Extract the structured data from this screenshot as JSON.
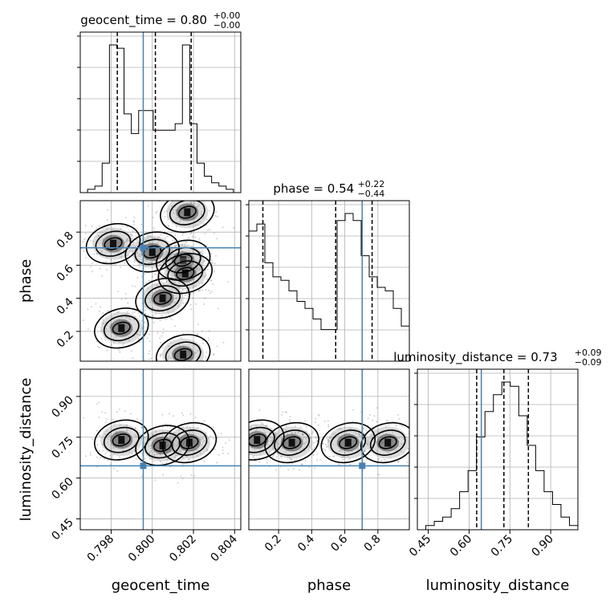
{
  "chart_data": {
    "type": "corner",
    "parameters": [
      "geocent_time",
      "phase",
      "luminosity_distance"
    ],
    "truths": [
      0.79956,
      0.705,
      0.645
    ],
    "ranges": [
      [
        0.7965,
        0.8043
      ],
      [
        0.02,
        0.99
      ],
      [
        0.41,
        1.0
      ]
    ],
    "ticks": {
      "geocent_time": [
        "0.798",
        "0.800",
        "0.802",
        "0.804"
      ],
      "phase": [
        "0.2",
        "0.4",
        "0.6",
        "0.8"
      ],
      "luminosity_distance": [
        "0.45",
        "0.60",
        "0.75",
        "0.90"
      ]
    },
    "titles": {
      "geocent_time": {
        "name": "geocent_time",
        "value": "0.80",
        "plus": "+0.00",
        "minus": "−0.00"
      },
      "phase": {
        "name": "phase",
        "value": "0.54",
        "plus": "+0.22",
        "minus": "−0.44"
      },
      "luminosity_distance": {
        "name": "luminosity_distance",
        "value": "0.73",
        "plus": "+0.09",
        "minus": "−0.09"
      }
    },
    "quantiles": {
      "geocent_time": [
        0.7983,
        0.80015,
        0.80189
      ],
      "phase": [
        0.105,
        0.545,
        0.765
      ],
      "luminosity_distance": [
        0.628,
        0.728,
        0.818
      ]
    },
    "histograms": {
      "geocent_time": {
        "range": [
          0.7965,
          0.8043
        ],
        "counts": [
          0,
          1,
          2,
          9,
          45,
          44,
          24,
          18,
          25,
          25,
          19,
          19,
          19,
          21,
          45,
          21,
          9,
          5,
          3,
          2,
          1,
          0
        ]
      },
      "phase": {
        "range": [
          0.02,
          0.99
        ],
        "counts": [
          37,
          39,
          28,
          24,
          23,
          20,
          17,
          15,
          12,
          9,
          9,
          40,
          42,
          40,
          30,
          24,
          21,
          20,
          15,
          10
        ]
      },
      "luminosity_distance": {
        "range": [
          0.41,
          1.0
        ],
        "counts": [
          0,
          1,
          2,
          3,
          5,
          9,
          14,
          22,
          28,
          32,
          35,
          34,
          27,
          20,
          14,
          9,
          6,
          3,
          1
        ]
      }
    },
    "density_clusters": {
      "phase_vs_geocent_time": [
        {
          "x": 0.7981,
          "y": 0.73
        },
        {
          "x": 0.8,
          "y": 0.68
        },
        {
          "x": 0.8015,
          "y": 0.63
        },
        {
          "x": 0.8016,
          "y": 0.55
        },
        {
          "x": 0.8005,
          "y": 0.4
        },
        {
          "x": 0.7985,
          "y": 0.22
        },
        {
          "x": 0.8015,
          "y": 0.06
        },
        {
          "x": 0.8017,
          "y": 0.92
        }
      ],
      "luminosity_distance_vs_geocent_time": [
        {
          "x": 0.7985,
          "y": 0.74
        },
        {
          "x": 0.8005,
          "y": 0.72
        },
        {
          "x": 0.8018,
          "y": 0.73
        }
      ],
      "luminosity_distance_vs_phase": [
        {
          "x": 0.07,
          "y": 0.74
        },
        {
          "x": 0.28,
          "y": 0.73
        },
        {
          "x": 0.62,
          "y": 0.73
        },
        {
          "x": 0.86,
          "y": 0.73
        }
      ]
    }
  }
}
